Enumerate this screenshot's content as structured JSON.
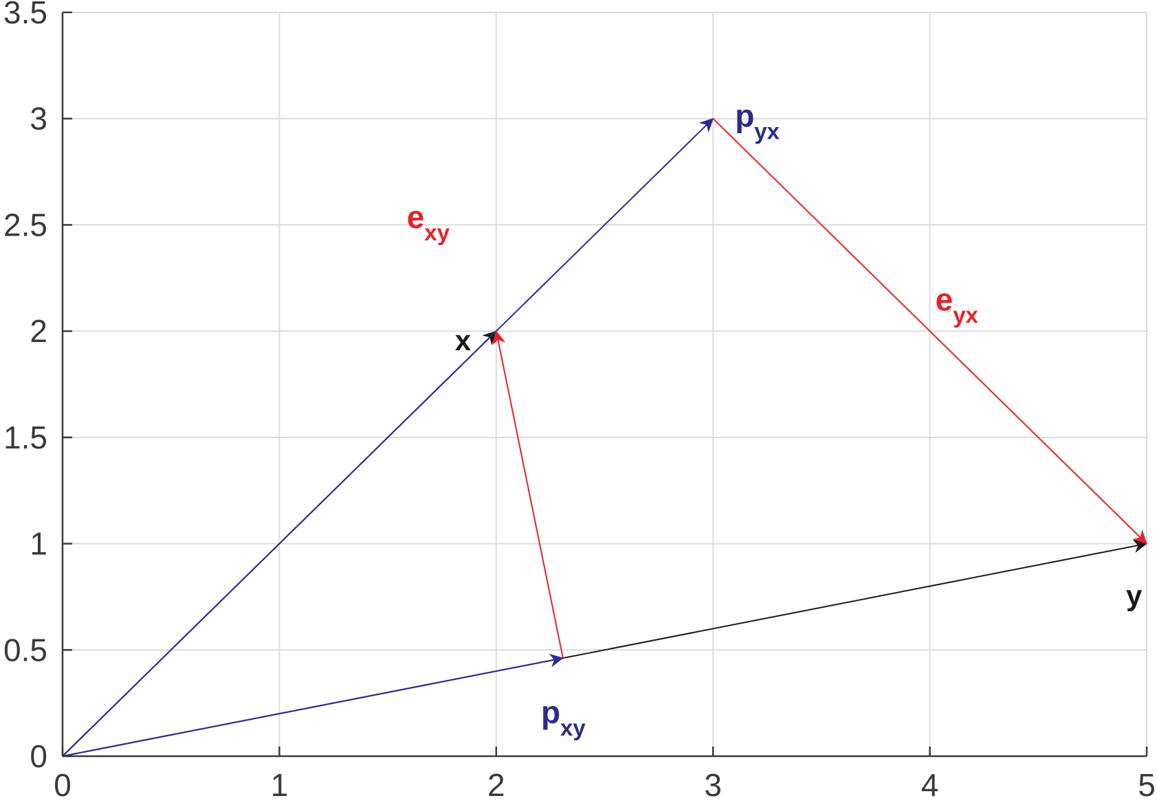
{
  "chart_data": {
    "type": "line",
    "title": "",
    "xlabel": "",
    "ylabel": "",
    "xlim": [
      0,
      5
    ],
    "ylim": [
      0,
      3.5
    ],
    "grid": true,
    "xticks": [
      0,
      1,
      2,
      3,
      4,
      5
    ],
    "xtick_labels": [
      "0",
      "1",
      "2",
      "3",
      "4",
      "5"
    ],
    "yticks": [
      0,
      0.5,
      1,
      1.5,
      2,
      2.5,
      3,
      3.5
    ],
    "ytick_labels": [
      "0",
      "0.5",
      "1",
      "1.5",
      "2",
      "2.5",
      "3",
      "3.5"
    ],
    "colors": {
      "black": "#1a1a1a",
      "blue": "#2b2b8c",
      "red": "#e8202a",
      "grid": "#dcdcdc",
      "axis": "#3a3a3a"
    },
    "vectors": [
      {
        "id": "x",
        "from": [
          0,
          0
        ],
        "to": [
          2,
          2
        ],
        "color": "black",
        "label": "x",
        "sub": ""
      },
      {
        "id": "y",
        "from": [
          0,
          0
        ],
        "to": [
          5,
          1
        ],
        "color": "black",
        "label": "y",
        "sub": ""
      },
      {
        "id": "p_yx",
        "from": [
          0,
          0
        ],
        "to": [
          3,
          3
        ],
        "color": "blue",
        "label": "p",
        "sub": "yx"
      },
      {
        "id": "p_xy",
        "from": [
          0,
          0
        ],
        "to": [
          2.308,
          0.462
        ],
        "color": "blue",
        "label": "p",
        "sub": "xy"
      },
      {
        "id": "e_yx",
        "from": [
          3,
          3
        ],
        "to": [
          5,
          1
        ],
        "color": "red",
        "label": "e",
        "sub": "yx"
      },
      {
        "id": "e_xy",
        "from": [
          2.308,
          0.462
        ],
        "to": [
          2,
          2
        ],
        "color": "red",
        "label": "e",
        "sub": "xy"
      }
    ]
  }
}
